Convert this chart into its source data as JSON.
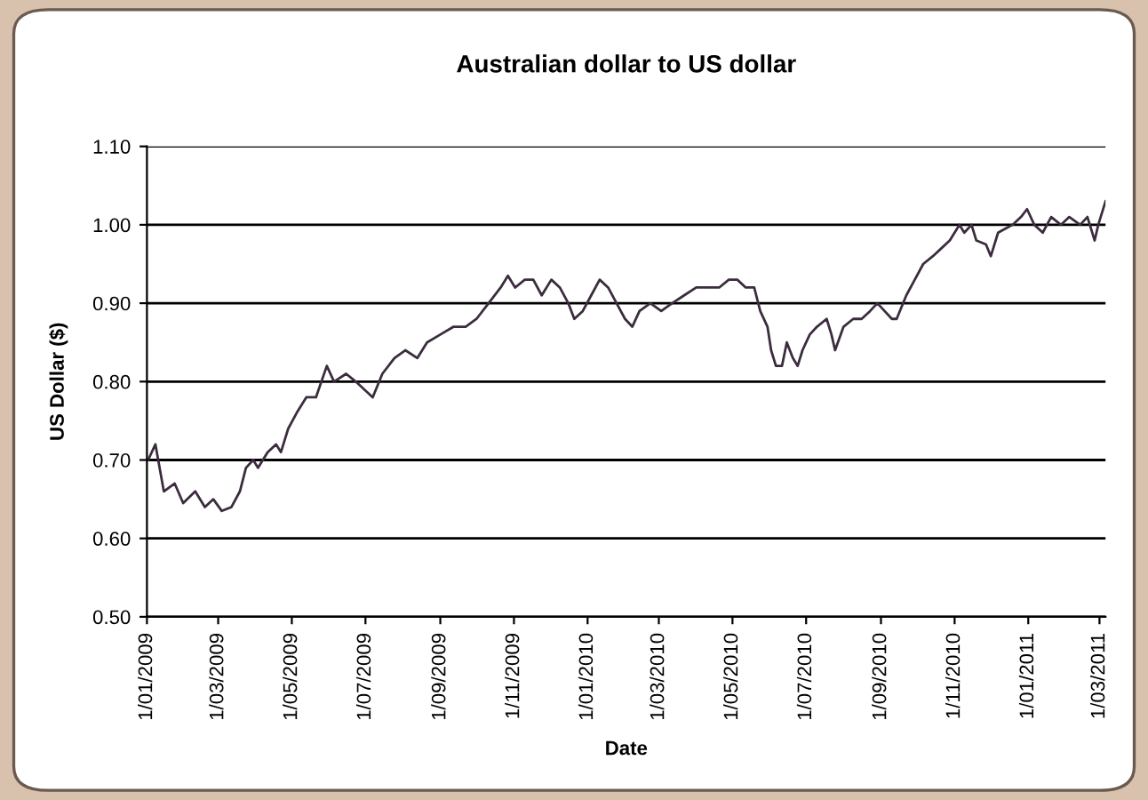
{
  "chart_data": {
    "type": "line",
    "title": "Australian dollar to US dollar",
    "xlabel": "Date",
    "ylabel": "US Dollar ($)",
    "x": [
      "2009-01-02",
      "2009-01-08",
      "2009-01-15",
      "2009-01-24",
      "2009-01-31",
      "2009-02-10",
      "2009-02-18",
      "2009-02-25",
      "2009-03-04",
      "2009-03-12",
      "2009-03-19",
      "2009-03-24",
      "2009-03-30",
      "2009-04-03",
      "2009-04-11",
      "2009-04-18",
      "2009-04-22",
      "2009-04-28",
      "2009-05-05",
      "2009-05-13",
      "2009-05-21",
      "2009-05-30",
      "2009-06-05",
      "2009-06-15",
      "2009-06-23",
      "2009-07-07",
      "2009-07-15",
      "2009-07-25",
      "2009-08-03",
      "2009-08-13",
      "2009-08-21",
      "2009-09-01",
      "2009-09-12",
      "2009-09-22",
      "2009-10-01",
      "2009-10-11",
      "2009-10-21",
      "2009-10-27",
      "2009-11-02",
      "2009-11-10",
      "2009-11-17",
      "2009-11-24",
      "2009-12-02",
      "2009-12-09",
      "2009-12-16",
      "2009-12-21",
      "2009-12-28",
      "2010-01-04",
      "2010-01-11",
      "2010-01-18",
      "2010-01-25",
      "2010-02-01",
      "2010-02-07",
      "2010-02-13",
      "2010-02-22",
      "2010-03-03",
      "2010-03-12",
      "2010-03-22",
      "2010-04-01",
      "2010-04-10",
      "2010-04-20",
      "2010-04-28",
      "2010-05-05",
      "2010-05-12",
      "2010-05-19",
      "2010-05-24",
      "2010-05-30",
      "2010-06-02",
      "2010-06-06",
      "2010-06-11",
      "2010-06-15",
      "2010-06-20",
      "2010-06-24",
      "2010-06-28",
      "2010-07-04",
      "2010-07-10",
      "2010-07-18",
      "2010-07-22",
      "2010-07-25",
      "2010-08-01",
      "2010-08-09",
      "2010-08-16",
      "2010-08-23",
      "2010-08-29",
      "2010-09-04",
      "2010-09-10",
      "2010-09-14",
      "2010-09-22",
      "2010-09-29",
      "2010-10-06",
      "2010-10-14",
      "2010-10-21",
      "2010-10-28",
      "2010-11-05",
      "2010-11-09",
      "2010-11-15",
      "2010-11-19",
      "2010-11-27",
      "2010-12-01",
      "2010-12-07",
      "2010-12-13",
      "2010-12-19",
      "2010-12-26",
      "2010-12-31",
      "2011-01-06",
      "2011-01-13",
      "2011-01-20",
      "2011-01-28",
      "2011-02-04",
      "2011-02-13",
      "2011-02-19",
      "2011-02-25",
      "2011-02-28",
      "2011-03-06"
    ],
    "series": [
      {
        "color": "#3b2c3e",
        "values": [
          0.7,
          0.72,
          0.66,
          0.67,
          0.645,
          0.66,
          0.64,
          0.65,
          0.635,
          0.64,
          0.66,
          0.69,
          0.7,
          0.69,
          0.71,
          0.72,
          0.71,
          0.74,
          0.76,
          0.78,
          0.78,
          0.82,
          0.8,
          0.81,
          0.8,
          0.78,
          0.81,
          0.83,
          0.84,
          0.83,
          0.85,
          0.86,
          0.87,
          0.87,
          0.88,
          0.9,
          0.92,
          0.935,
          0.92,
          0.93,
          0.93,
          0.91,
          0.93,
          0.92,
          0.9,
          0.88,
          0.89,
          0.91,
          0.93,
          0.92,
          0.9,
          0.88,
          0.87,
          0.89,
          0.9,
          0.89,
          0.9,
          0.91,
          0.92,
          0.92,
          0.92,
          0.93,
          0.93,
          0.92,
          0.92,
          0.89,
          0.87,
          0.84,
          0.82,
          0.82,
          0.85,
          0.83,
          0.82,
          0.84,
          0.86,
          0.87,
          0.88,
          0.86,
          0.84,
          0.87,
          0.88,
          0.88,
          0.89,
          0.9,
          0.89,
          0.88,
          0.88,
          0.91,
          0.93,
          0.95,
          0.96,
          0.97,
          0.98,
          1.0,
          0.99,
          1.0,
          0.98,
          0.975,
          0.96,
          0.99,
          0.995,
          1.0,
          1.01,
          1.02,
          1.0,
          0.99,
          1.01,
          1.0,
          1.01,
          1.0,
          1.01,
          0.98,
          1.0,
          1.03
        ]
      }
    ],
    "xlim": [
      "2009-01-01",
      "2011-03-06"
    ],
    "xticks": [
      {
        "value": "2009-01-01",
        "label": "1/01/2009"
      },
      {
        "value": "2009-03-01",
        "label": "1/03/2009"
      },
      {
        "value": "2009-05-01",
        "label": "1/05/2009"
      },
      {
        "value": "2009-07-01",
        "label": "1/07/2009"
      },
      {
        "value": "2009-09-01",
        "label": "1/09/2009"
      },
      {
        "value": "2009-11-01",
        "label": "1/11/2009"
      },
      {
        "value": "2010-01-01",
        "label": "1/01/2010"
      },
      {
        "value": "2010-03-01",
        "label": "1/03/2010"
      },
      {
        "value": "2010-05-01",
        "label": "1/05/2010"
      },
      {
        "value": "2010-07-01",
        "label": "1/07/2010"
      },
      {
        "value": "2010-09-01",
        "label": "1/09/2010"
      },
      {
        "value": "2010-11-01",
        "label": "1/11/2010"
      },
      {
        "value": "2011-01-01",
        "label": "1/01/2011"
      },
      {
        "value": "2011-03-01",
        "label": "1/03/2011"
      }
    ],
    "ylim": [
      0.5,
      1.1
    ],
    "yticks": [
      {
        "value": 0.5,
        "label": "0.50"
      },
      {
        "value": 0.6,
        "label": "0.60"
      },
      {
        "value": 0.7,
        "label": "0.70"
      },
      {
        "value": 0.8,
        "label": "0.80"
      },
      {
        "value": 0.9,
        "label": "0.90"
      },
      {
        "value": 1.0,
        "label": "1.00"
      },
      {
        "value": 1.1,
        "label": "1.10"
      }
    ],
    "grid": "y",
    "marker": "none",
    "line_style": "solid"
  }
}
